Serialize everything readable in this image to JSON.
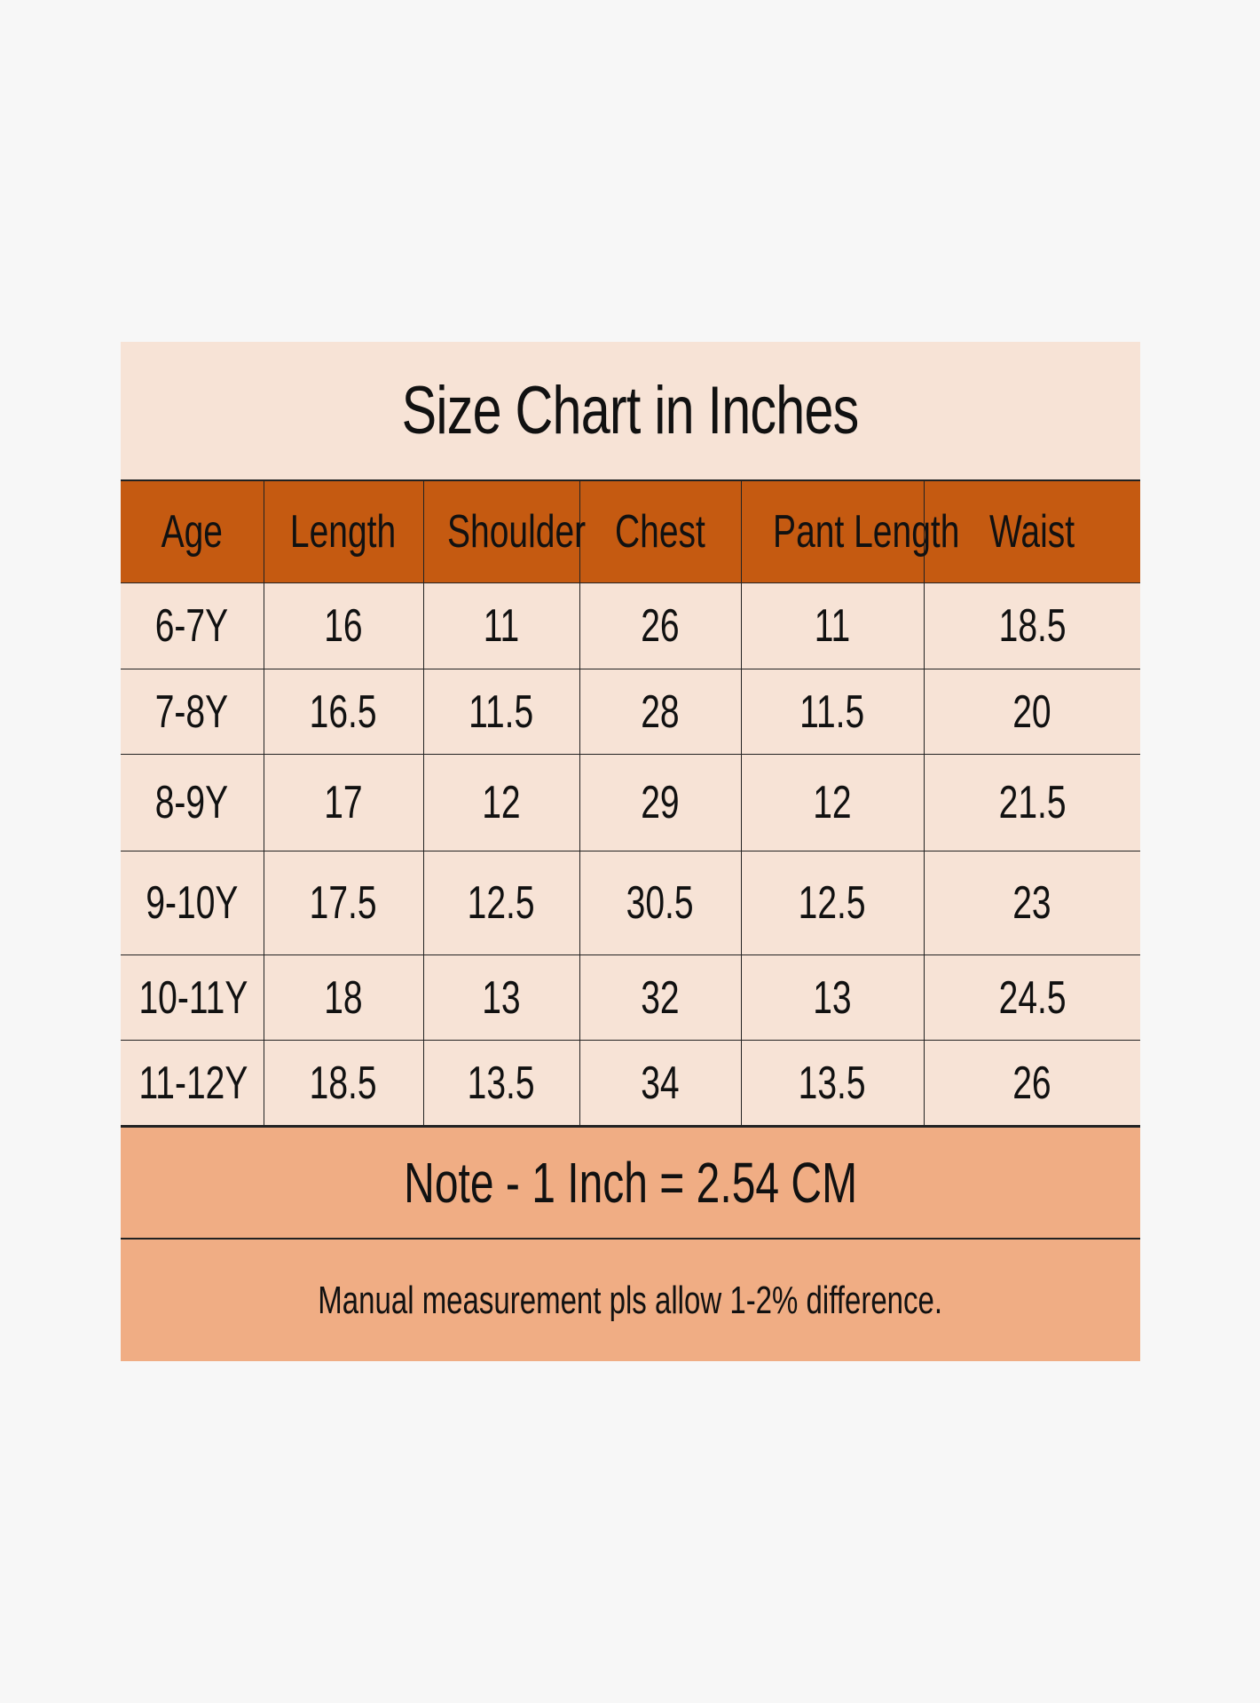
{
  "title": "Size Chart in Inches",
  "colors": {
    "background": "#f7f7f7",
    "cell": "#f7e3d6",
    "header": "#c55a11",
    "note": "#f0ad84"
  },
  "columns": [
    "Age",
    "Length",
    "Shoulder",
    "Chest",
    "Pant Length",
    "Waist"
  ],
  "rows": [
    [
      "6-7Y",
      "16",
      "11",
      "26",
      "11",
      "18.5"
    ],
    [
      "7-8Y",
      "16.5",
      "11.5",
      "28",
      "11.5",
      "20"
    ],
    [
      "8-9Y",
      "17",
      "12",
      "29",
      "12",
      "21.5"
    ],
    [
      "9-10Y",
      "17.5",
      "12.5",
      "30.5",
      "12.5",
      "23"
    ],
    [
      "10-11Y",
      "18",
      "13",
      "32",
      "13",
      "24.5"
    ],
    [
      "11-12Y",
      "18.5",
      "13.5",
      "34",
      "13.5",
      "26"
    ]
  ],
  "note": "Note - 1 Inch = 2.54 CM",
  "disclaimer": "Manual measurement pls allow 1-2% difference."
}
